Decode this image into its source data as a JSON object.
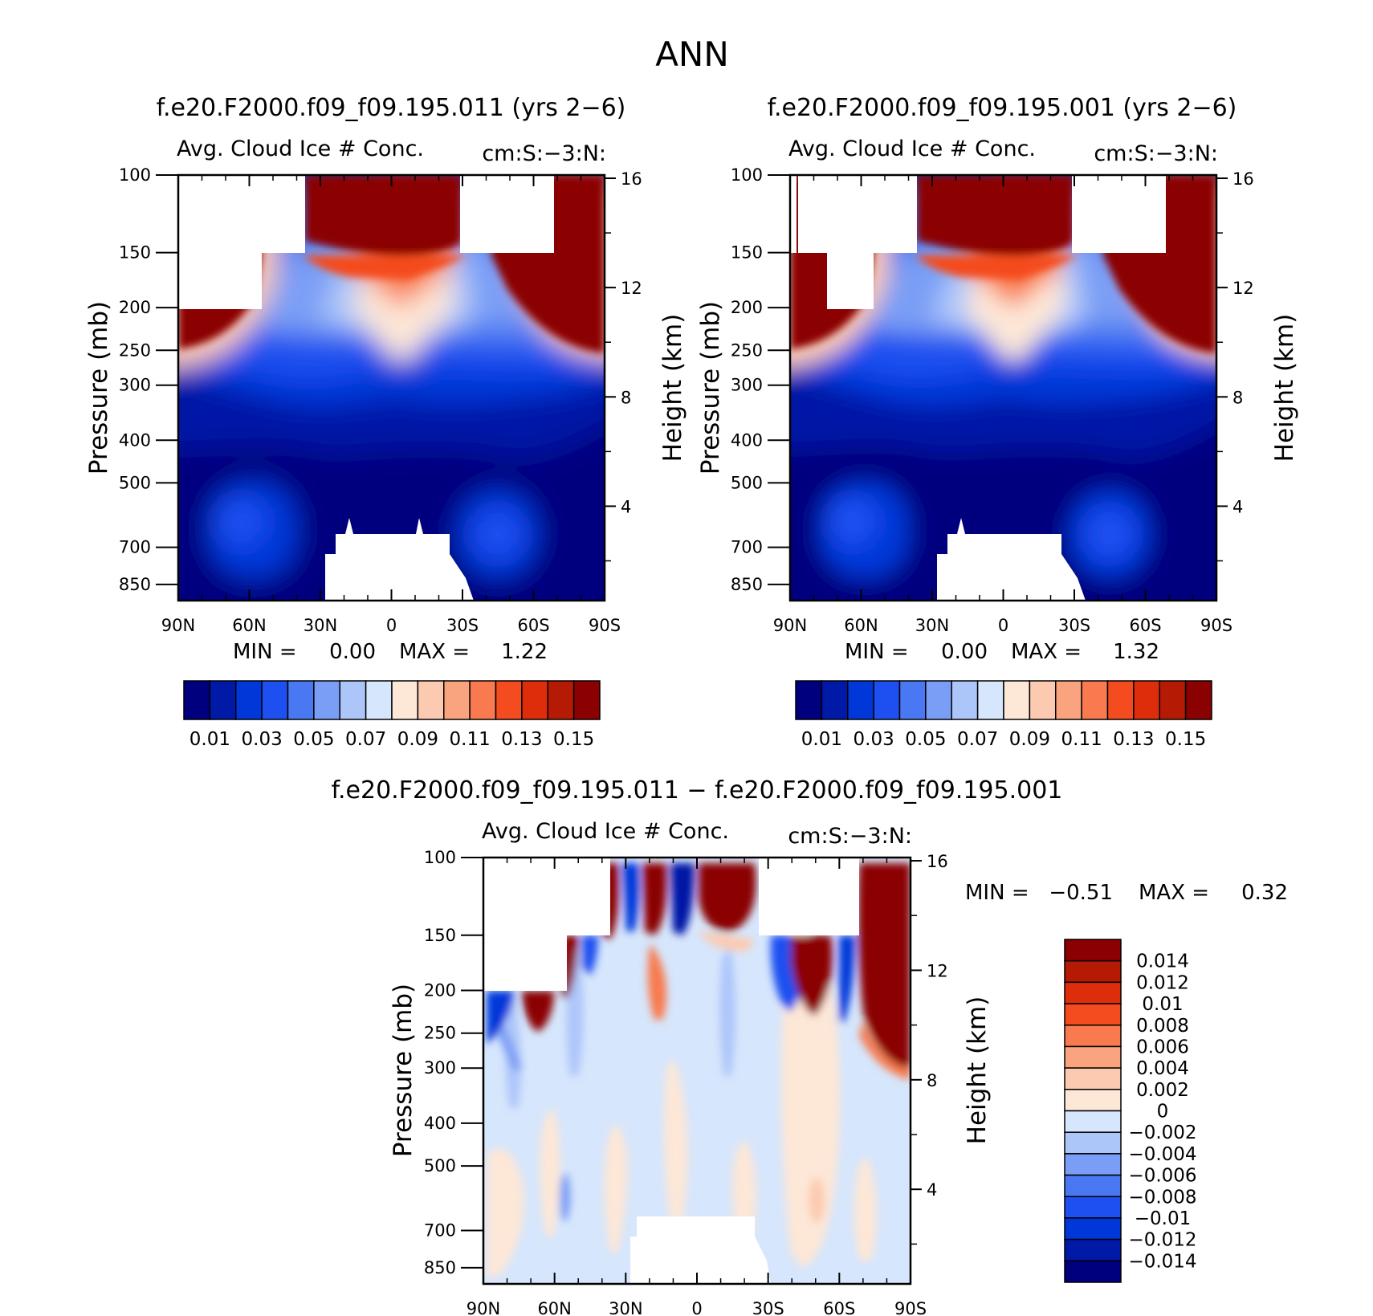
{
  "page_title": "ANN",
  "colors": {
    "base_scale": [
      "#00007f",
      "#0019a6",
      "#0037d9",
      "#1e4ff0",
      "#4a78f2",
      "#7a9ef5",
      "#adc6fa",
      "#d6e6fc",
      "#fde7d7",
      "#fccab0",
      "#faa47f",
      "#f87a4e",
      "#f44c1f",
      "#de2d0b",
      "#b51a04",
      "#8b0000"
    ],
    "diff_scale": [
      "#8b0000",
      "#b51a04",
      "#de2d0b",
      "#f44c1f",
      "#f87a4e",
      "#faa47f",
      "#fccab0",
      "#fde7d7",
      "#d6e6fc",
      "#adc6fa",
      "#7a9ef5",
      "#4a78f2",
      "#1e4ff0",
      "#0037d9",
      "#0019a6",
      "#00007f"
    ]
  },
  "chart_data": [
    {
      "type": "heatmap",
      "title": "f.e20.F2000.f09_f09.195.011 (yrs 2-6)",
      "subtitle_left": "Avg. Cloud Ice # Conc.",
      "subtitle_right": "cm:S:-3:N:",
      "ylabel": "Pressure (mb)",
      "ylabel_right": "Height (km)",
      "xticks": [
        "90N",
        "60N",
        "30N",
        "0",
        "30S",
        "60S",
        "90S"
      ],
      "yticks": [
        "100",
        "150",
        "200",
        "250",
        "300",
        "400",
        "500",
        "700",
        "850"
      ],
      "yticks_right": [
        "16",
        "12",
        "8",
        "4"
      ],
      "min_label": "MIN =",
      "min_value": "0.00",
      "max_label": "MAX =",
      "max_value": "1.22",
      "colorbar_labels": [
        "0.01",
        "0.03",
        "0.05",
        "0.07",
        "0.09",
        "0.11",
        "0.13",
        "0.15"
      ]
    },
    {
      "type": "heatmap",
      "title": "f.e20.F2000.f09_f09.195.001 (yrs 2-6)",
      "subtitle_left": "Avg. Cloud Ice # Conc.",
      "subtitle_right": "cm:S:-3:N:",
      "ylabel": "Pressure (mb)",
      "ylabel_right": "Height (km)",
      "xticks": [
        "90N",
        "60N",
        "30N",
        "0",
        "30S",
        "60S",
        "90S"
      ],
      "yticks": [
        "100",
        "150",
        "200",
        "250",
        "300",
        "400",
        "500",
        "700",
        "850"
      ],
      "yticks_right": [
        "16",
        "12",
        "8",
        "4"
      ],
      "min_label": "MIN =",
      "min_value": "0.00",
      "max_label": "MAX =",
      "max_value": "1.32",
      "colorbar_labels": [
        "0.01",
        "0.03",
        "0.05",
        "0.07",
        "0.09",
        "0.11",
        "0.13",
        "0.15"
      ]
    },
    {
      "type": "heatmap",
      "title": "f.e20.F2000.f09_f09.195.011 - f.e20.F2000.f09_f09.195.001",
      "subtitle_left": "Avg. Cloud Ice # Conc.",
      "subtitle_right": "cm:S:-3:N:",
      "ylabel": "Pressure (mb)",
      "ylabel_right": "Height (km)",
      "xticks": [
        "90N",
        "60N",
        "30N",
        "0",
        "30S",
        "60S",
        "90S"
      ],
      "yticks": [
        "100",
        "150",
        "200",
        "250",
        "300",
        "400",
        "500",
        "700",
        "850"
      ],
      "yticks_right": [
        "16",
        "12",
        "8",
        "4"
      ],
      "min_label": "MIN =",
      "min_value": "-0.51",
      "max_label": "MAX =",
      "max_value": "0.32",
      "colorbar_labels": [
        "0.014",
        "0.012",
        "0.01",
        "0.008",
        "0.006",
        "0.004",
        "0.002",
        "0",
        "-0.002",
        "-0.004",
        "-0.006",
        "-0.008",
        "-0.01",
        "-0.012",
        "-0.014"
      ]
    }
  ]
}
